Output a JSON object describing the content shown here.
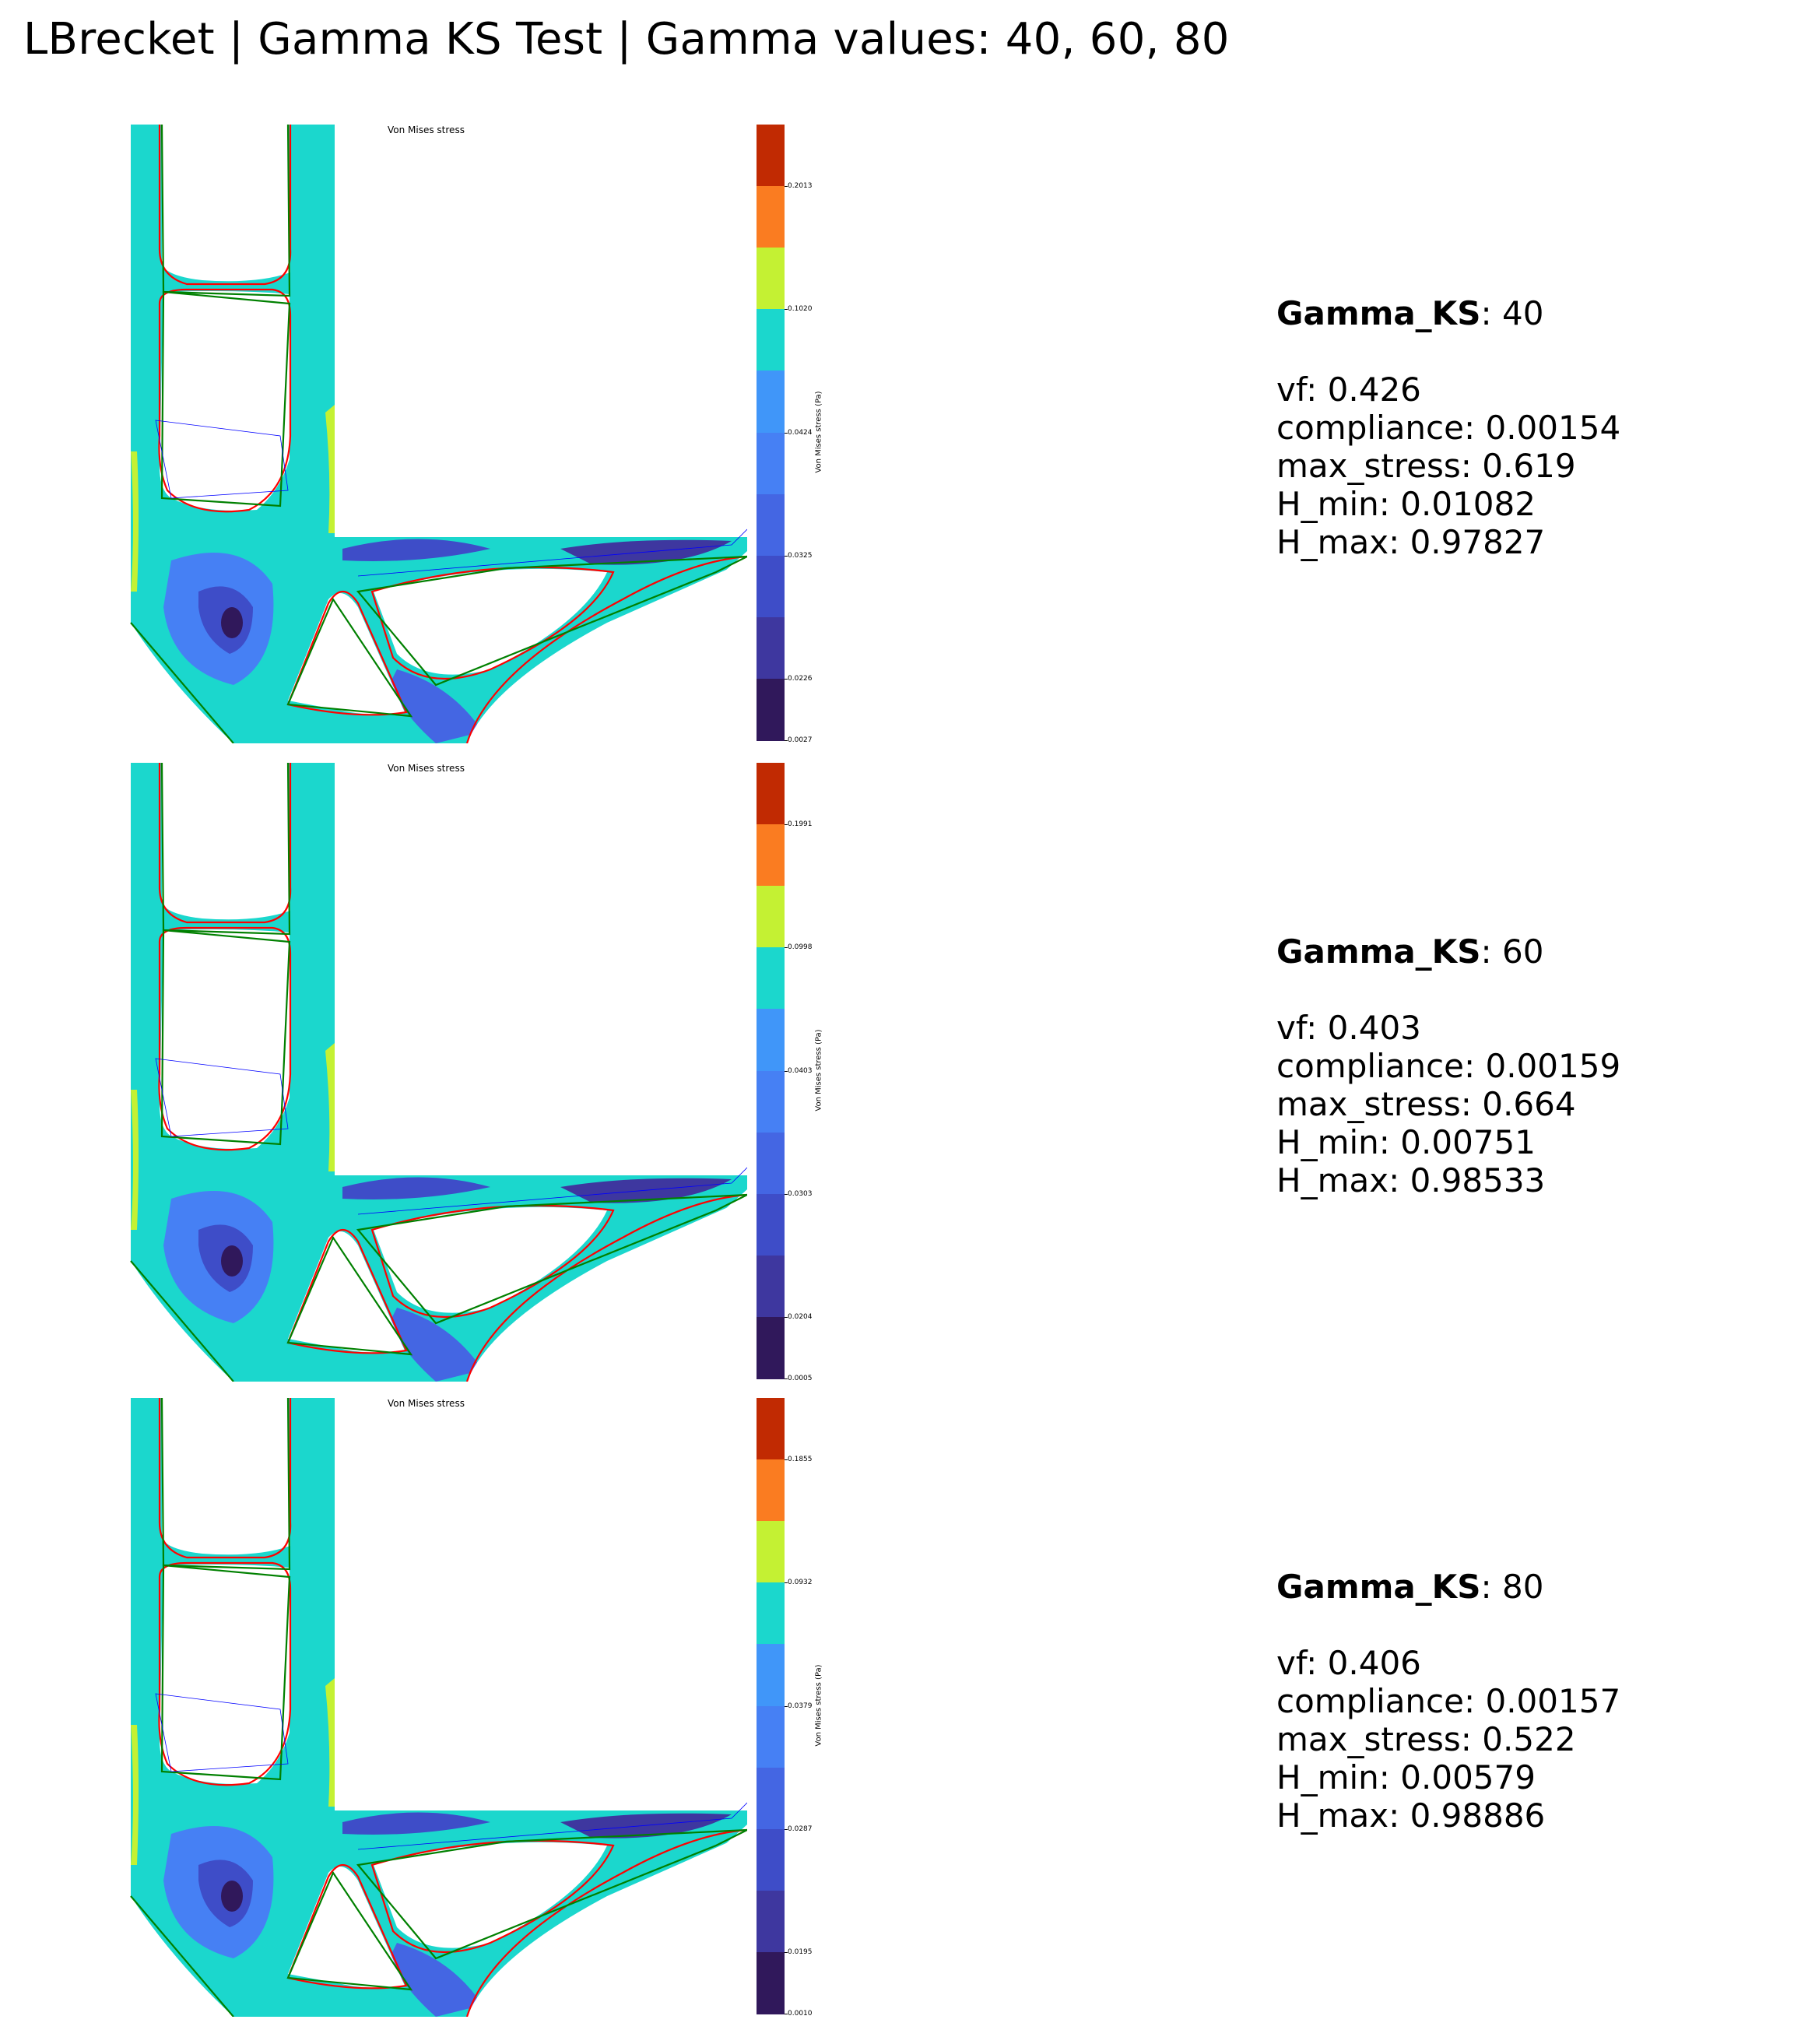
{
  "title": "LBrecket | Gamma KS Test | Gamma values: 40, 60, 80",
  "plot_title": "Von Mises stress",
  "colorbar_label": "Von Mises stress (Pa)",
  "colorbar_colors": [
    "#c12a02",
    "#fa7c21",
    "#c4f133",
    "#1bd7cd",
    "#4096f9",
    "#4680f4",
    "#4466e3",
    "#3e4dc8",
    "#3e379f",
    "#30185b"
  ],
  "colors": {
    "contour_teal": "#1bd7cd",
    "contour_yellow": "#c4f133",
    "contour_blue": "#4680f4",
    "contour_dark": "#30185b",
    "level_set_red": "#ff0000",
    "polygon_green": "#008000",
    "component_blue": "#0000ff"
  },
  "panels": [
    {
      "gamma_label": "Gamma_KS",
      "gamma_value": ": 40",
      "ticks": [
        "0.2013",
        "0.1020",
        "0.0424",
        "0.0325",
        "0.0226",
        "0.0027"
      ],
      "stats": [
        "vf: 0.426",
        "compliance: 0.00154",
        "max_stress: 0.619",
        "H_min: 0.01082",
        "H_max: 0.97827"
      ]
    },
    {
      "gamma_label": "Gamma_KS",
      "gamma_value": ": 60",
      "ticks": [
        "0.1991",
        "0.0998",
        "0.0403",
        "0.0303",
        "0.0204",
        "0.0005"
      ],
      "stats": [
        "vf: 0.403",
        "compliance: 0.00159",
        "max_stress: 0.664",
        "H_min: 0.00751",
        "H_max: 0.98533"
      ]
    },
    {
      "gamma_label": "Gamma_KS",
      "gamma_value": ": 80",
      "ticks": [
        "0.1855",
        "0.0932",
        "0.0379",
        "0.0287",
        "0.0195",
        "0.0010"
      ],
      "stats": [
        "vf: 0.406",
        "compliance: 0.00157",
        "max_stress: 0.522",
        "H_min: 0.00579",
        "H_max: 0.98886"
      ]
    }
  ]
}
